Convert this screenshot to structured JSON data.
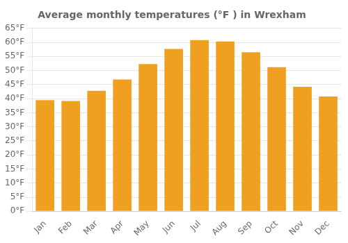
{
  "chart_data": {
    "type": "bar",
    "title": "Average monthly temperatures (°F ) in Wrexham",
    "categories": [
      "Jan",
      "Feb",
      "Mar",
      "Apr",
      "May",
      "Jun",
      "Jul",
      "Aug",
      "Sep",
      "Oct",
      "Nov",
      "Dec"
    ],
    "values": [
      39.5,
      39.2,
      42.8,
      46.8,
      52.3,
      57.7,
      60.8,
      60.3,
      56.5,
      51.2,
      44.2,
      40.8
    ],
    "color": "#F0A020",
    "ylim": [
      0,
      65
    ],
    "yticks": [
      {
        "value": 0,
        "label": "0°F"
      },
      {
        "value": 5,
        "label": "5°F"
      },
      {
        "value": 10,
        "label": "10°F"
      },
      {
        "value": 15,
        "label": "15°F"
      },
      {
        "value": 20,
        "label": "20°F"
      },
      {
        "value": 25,
        "label": "25°F"
      },
      {
        "value": 30,
        "label": "30°F"
      },
      {
        "value": 35,
        "label": "35°F"
      },
      {
        "value": 40,
        "label": "40°F"
      },
      {
        "value": 45,
        "label": "45°F"
      },
      {
        "value": 50,
        "label": "50°F"
      },
      {
        "value": 55,
        "label": "55°F"
      },
      {
        "value": 60,
        "label": "60°F"
      },
      {
        "value": 65,
        "label": "65°F"
      }
    ],
    "grid": true
  }
}
